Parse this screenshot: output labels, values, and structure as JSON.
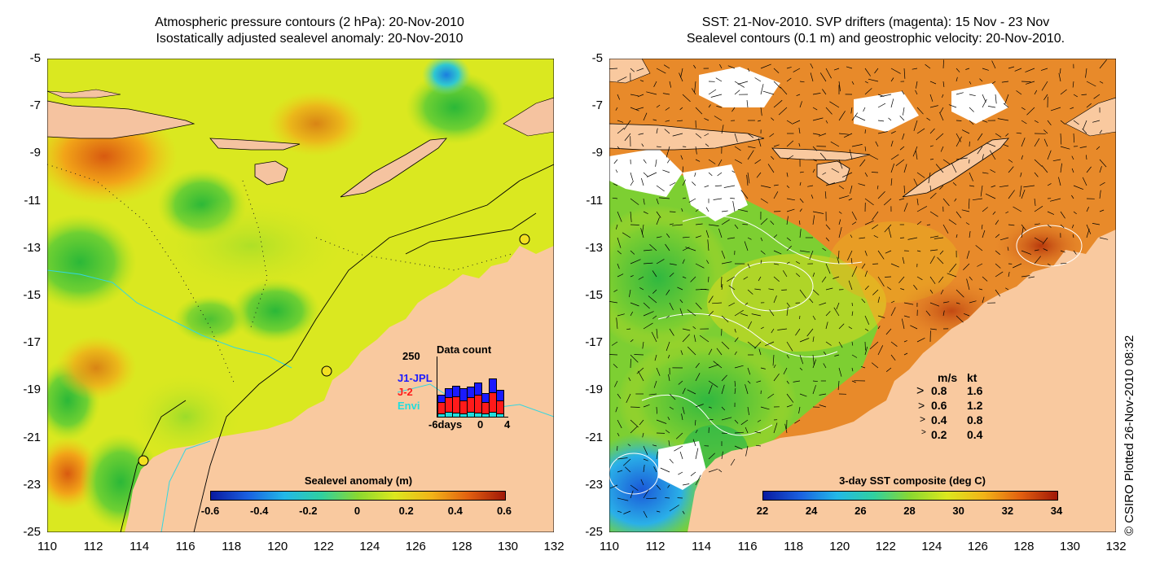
{
  "left_panel": {
    "title_line1": "Atmospheric pressure contours (2 hPa): 20-Nov-2010",
    "title_line2": "Isostatically adjusted sealevel anomaly: 20-Nov-2010",
    "colorbar_title": "Sealevel anomaly (m)",
    "colorbar_ticks": [
      "-0.6",
      "-0.4",
      "-0.2",
      "0",
      "0.2",
      "0.4",
      "0.6"
    ],
    "inset": {
      "title": "Data count",
      "y_max_label": "250",
      "legend": [
        {
          "label": "J1-JPL",
          "color": "#1a1aff"
        },
        {
          "label": "J-2",
          "color": "#ff1a1a"
        },
        {
          "label": "Envi",
          "color": "#22dddd"
        }
      ],
      "x_left_label": "-6days",
      "x_mid_label": "0",
      "x_right_label": "4"
    }
  },
  "right_panel": {
    "title_line1": "SST: 21-Nov-2010. SVP drifters (magenta): 15 Nov - 23 Nov",
    "title_line2": "Sealevel contours (0.1 m) and geostrophic velocity: 20-Nov-2010.",
    "colorbar_title": "3-day SST composite (deg C)",
    "colorbar_ticks": [
      "22",
      "24",
      "26",
      "28",
      "30",
      "32",
      "34"
    ],
    "velocity_legend": {
      "header_ms": "m/s",
      "header_kt": "kt",
      "rows": [
        {
          "ms": "0.8",
          "kt": "1.6"
        },
        {
          "ms": "0.6",
          "kt": "1.2"
        },
        {
          "ms": "0.4",
          "kt": "0.8"
        },
        {
          "ms": "0.2",
          "kt": "0.4"
        }
      ]
    }
  },
  "axes": {
    "y_labels": [
      "-5",
      "-7",
      "-9",
      "-11",
      "-13",
      "-15",
      "-17",
      "-19",
      "-21",
      "-23",
      "-25"
    ],
    "x_labels": [
      "110",
      "112",
      "114",
      "116",
      "118",
      "120",
      "122",
      "124",
      "126",
      "128",
      "130",
      "132"
    ]
  },
  "copyright": "© CSIRO Plotted 26-Nov-2010 08:32",
  "colors": {
    "land": "#f9c99f",
    "sla_background": "#e8ec1a",
    "sst_background": "#e88a2a"
  }
}
